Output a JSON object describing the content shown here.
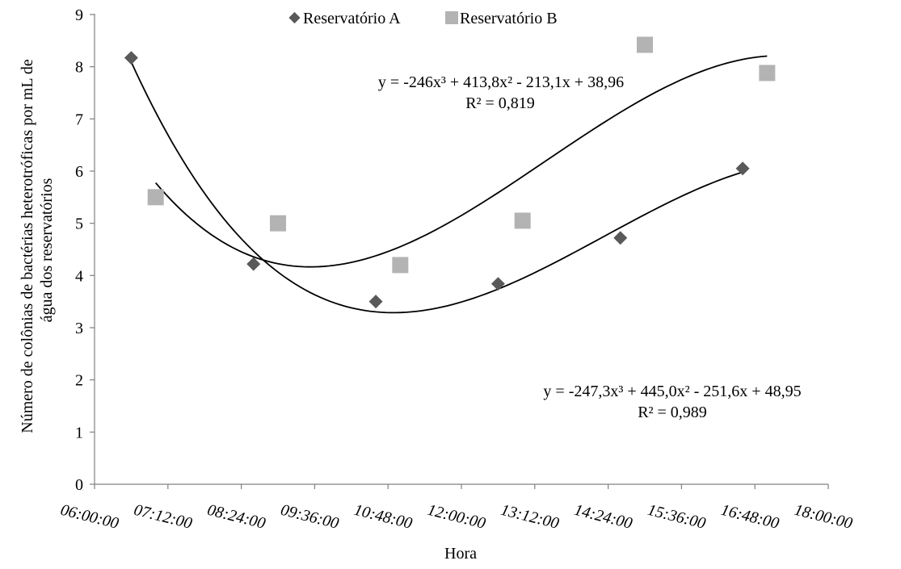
{
  "chart_data": {
    "type": "scatter",
    "xlabel": "Hora",
    "ylabel_lines": [
      "Número de colônias de bactérias heterotróficas  por mL de",
      "água dos reservatórios"
    ],
    "ylim": [
      0,
      9
    ],
    "yticks": [
      "0",
      "1",
      "2",
      "3",
      "4",
      "5",
      "6",
      "7",
      "8",
      "9"
    ],
    "xlim": [
      "06:00:00",
      "18:00:00"
    ],
    "xticks": [
      "06:00:00",
      "07:12:00",
      "08:24:00",
      "09:36:00",
      "10:48:00",
      "12:00:00",
      "13:12:00",
      "14:24:00",
      "15:36:00",
      "16:48:00",
      "18:00:00"
    ],
    "legend_position": "top-center",
    "series": [
      {
        "name": "Reservatório A",
        "marker": "diamond",
        "color": "#595959",
        "x": [
          "06:36",
          "08:36",
          "10:36",
          "12:36",
          "14:36",
          "16:36"
        ],
        "y": [
          8.17,
          4.22,
          3.5,
          3.84,
          4.72,
          6.05
        ],
        "trendline": {
          "equation": "y = -247,3x³ + 445,0x² - 251,6x + 48,95",
          "r2": "R² = 0,989"
        }
      },
      {
        "name": "Reservatório B",
        "marker": "square",
        "color": "#b3b3b3",
        "x": [
          "07:00",
          "09:00",
          "11:00",
          "13:00",
          "15:00",
          "17:00"
        ],
        "y": [
          5.5,
          5.0,
          4.2,
          5.05,
          8.42,
          7.88
        ],
        "trendline": {
          "equation": "y = -246x³ + 413,8x² - 213,1x + 38,96",
          "r2": "R² = 0,819"
        }
      }
    ]
  }
}
